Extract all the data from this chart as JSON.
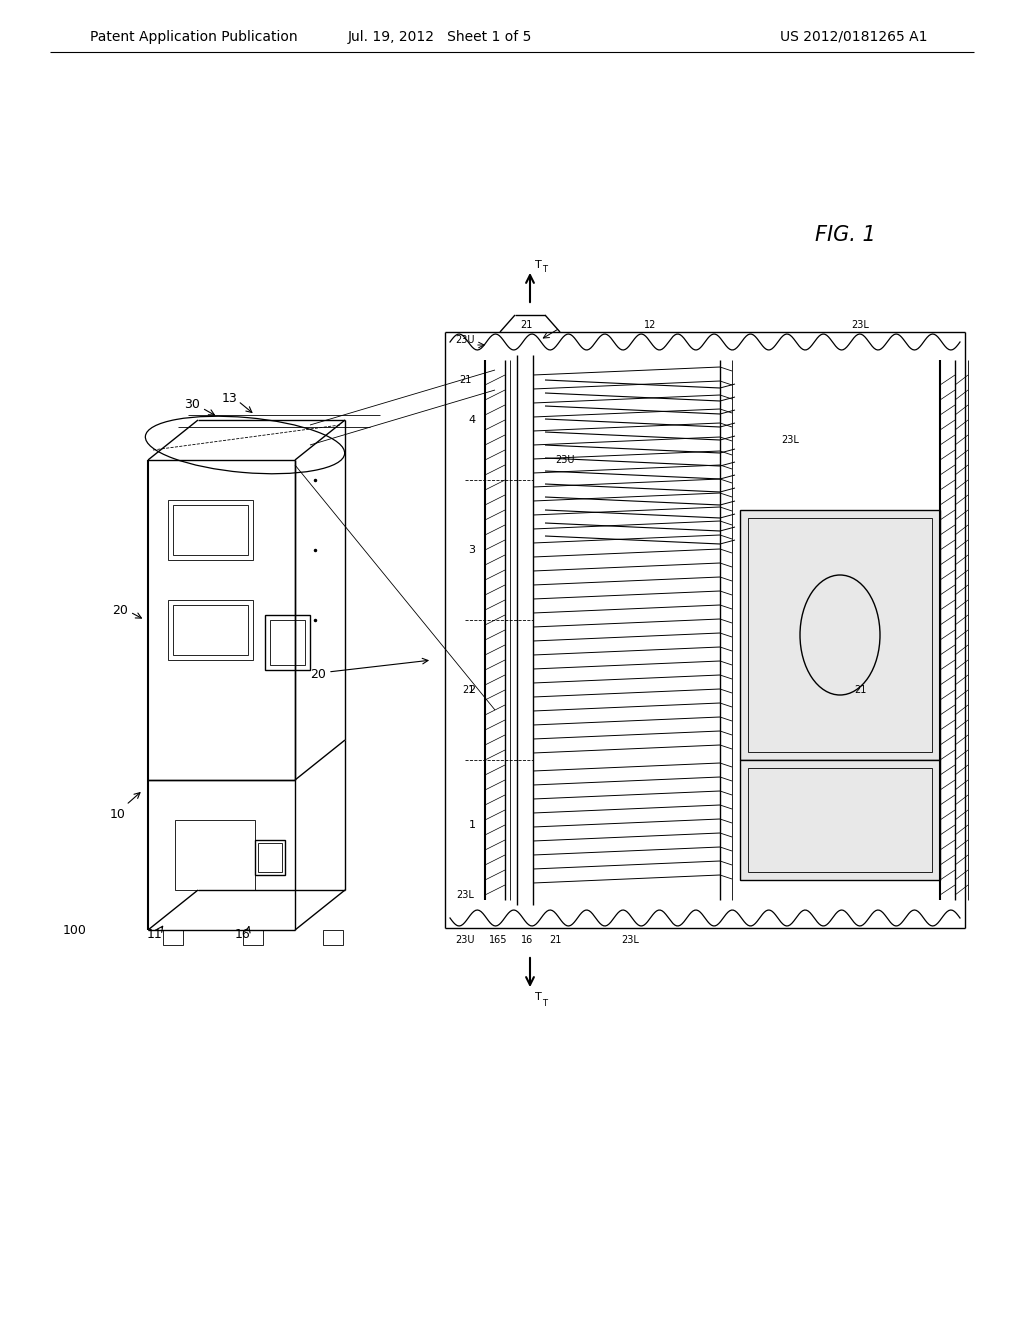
{
  "title_left": "Patent Application Publication",
  "title_center": "Jul. 19, 2012   Sheet 1 of 5",
  "title_right": "US 2012/0181265 A1",
  "fig_label": "FIG. 1",
  "bg_color": "#ffffff",
  "line_color": "#000000",
  "header_fontsize": 10,
  "label_fontsize": 9,
  "fig_label_fontsize": 15
}
